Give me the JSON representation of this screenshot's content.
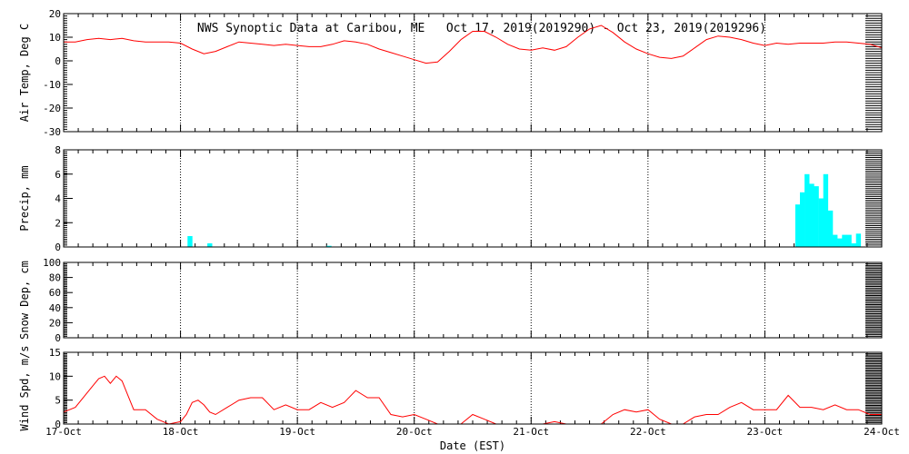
{
  "title": "NWS Synoptic Data at Caribou, ME   Oct 17, 2019(2019290) - Oct 23, 2019(2019296)",
  "x_axis_label": "Date (EST)",
  "x_ticks": [
    "17-Oct",
    "18-Oct",
    "19-Oct",
    "20-Oct",
    "21-Oct",
    "22-Oct",
    "23-Oct",
    "24-Oct"
  ],
  "colors": {
    "line": "#ff0000",
    "bars": "#00ffff",
    "axes": "#000000",
    "background": "#ffffff"
  },
  "chart_data": [
    {
      "type": "line",
      "ylabel": "Air Temp, Deg C",
      "ylim": [
        -30,
        20
      ],
      "yticks": [
        20,
        10,
        0,
        -10,
        -20,
        -30
      ],
      "x_unit": "days since 17-Oct 00:00 EST",
      "x": [
        0,
        0.1,
        0.2,
        0.3,
        0.4,
        0.5,
        0.6,
        0.7,
        0.8,
        0.9,
        1.0,
        1.1,
        1.2,
        1.3,
        1.4,
        1.5,
        1.6,
        1.7,
        1.8,
        1.9,
        2.0,
        2.1,
        2.2,
        2.3,
        2.4,
        2.5,
        2.6,
        2.7,
        2.8,
        2.9,
        3.0,
        3.1,
        3.2,
        3.3,
        3.4,
        3.5,
        3.6,
        3.7,
        3.8,
        3.9,
        4.0,
        4.1,
        4.2,
        4.3,
        4.4,
        4.5,
        4.6,
        4.7,
        4.8,
        4.9,
        5.0,
        5.1,
        5.2,
        5.3,
        5.4,
        5.5,
        5.6,
        5.7,
        5.8,
        5.9,
        6.0,
        6.1,
        6.2,
        6.3,
        6.4,
        6.5,
        6.6,
        6.7,
        6.8,
        6.9,
        7.0
      ],
      "y": [
        8,
        8,
        9,
        9.5,
        9,
        9.5,
        8.5,
        8,
        8,
        8,
        7.5,
        5,
        3,
        4,
        6,
        8,
        7.5,
        7,
        6.5,
        7,
        6.5,
        6,
        6,
        7,
        8.5,
        8,
        7,
        5,
        3.5,
        2,
        0.5,
        -1,
        -0.5,
        4,
        9,
        12.5,
        12.5,
        10,
        7,
        5,
        4.5,
        5.5,
        4.5,
        6,
        10,
        13.5,
        15,
        12,
        8,
        5,
        3,
        1.5,
        1,
        2,
        5.5,
        9,
        10.5,
        10,
        9,
        7.5,
        6.5,
        7.5,
        7,
        7.5,
        7.5,
        7.5,
        8,
        8,
        7.5,
        7,
        5.5
      ]
    },
    {
      "type": "bar",
      "ylabel": "Precip, mm",
      "ylim": [
        0,
        8
      ],
      "yticks": [
        8,
        6,
        4,
        2,
        0
      ],
      "x_unit": "days since 17-Oct 00:00 EST",
      "bar_width_days": 0.042,
      "x": [
        1.06,
        1.23,
        2.25,
        6.26,
        6.3,
        6.34,
        6.38,
        6.42,
        6.46,
        6.5,
        6.54,
        6.58,
        6.62,
        6.66,
        6.7,
        6.74,
        6.78
      ],
      "values": [
        0.9,
        0.3,
        0.1,
        3.5,
        4.5,
        6.0,
        5.2,
        5.0,
        4.0,
        6.0,
        3.0,
        1.0,
        0.7,
        1.0,
        1.0,
        0.3,
        1.1
      ]
    },
    {
      "type": "line",
      "ylabel": "Snow Dep, cm",
      "ylim": [
        0,
        100
      ],
      "yticks": [
        100,
        80,
        60,
        40,
        20,
        0
      ],
      "x": [],
      "y": []
    },
    {
      "type": "line",
      "ylabel": "Wind Spd, m/s",
      "ylim": [
        0,
        15
      ],
      "yticks": [
        15,
        10,
        5,
        0
      ],
      "x_unit": "days since 17-Oct 00:00 EST",
      "x": [
        0,
        0.1,
        0.2,
        0.25,
        0.3,
        0.35,
        0.4,
        0.45,
        0.5,
        0.55,
        0.6,
        0.7,
        0.8,
        0.9,
        1.0,
        1.05,
        1.1,
        1.15,
        1.2,
        1.25,
        1.3,
        1.4,
        1.5,
        1.6,
        1.7,
        1.8,
        1.9,
        2.0,
        2.1,
        2.2,
        2.3,
        2.4,
        2.5,
        2.6,
        2.7,
        2.8,
        2.9,
        3.0,
        3.1,
        3.2,
        3.3,
        3.4,
        3.5,
        3.6,
        3.7,
        3.8,
        3.9,
        4.0,
        4.1,
        4.2,
        4.3,
        4.4,
        4.5,
        4.6,
        4.7,
        4.8,
        4.9,
        5.0,
        5.1,
        5.2,
        5.3,
        5.4,
        5.5,
        5.6,
        5.7,
        5.8,
        5.9,
        6.0,
        6.1,
        6.2,
        6.3,
        6.4,
        6.5,
        6.6,
        6.7,
        6.8,
        6.9,
        7.0
      ],
      "y": [
        2.5,
        3.5,
        6.5,
        8,
        9.5,
        10,
        8.5,
        10,
        9,
        6,
        3,
        3,
        1,
        0,
        0.5,
        2,
        4.5,
        5,
        4,
        2.5,
        2,
        3.5,
        5,
        5.5,
        5.5,
        3,
        4,
        3,
        3,
        4.5,
        3.5,
        4.5,
        7,
        5.5,
        5.5,
        2,
        1.5,
        2,
        1,
        0,
        0,
        0,
        2,
        1,
        0,
        0,
        0,
        0,
        0,
        0.5,
        0,
        0,
        0,
        0,
        2,
        3,
        2.5,
        3,
        1,
        0,
        0,
        1.5,
        2,
        2,
        3.5,
        4.5,
        3,
        3,
        3,
        6,
        3.5,
        3.5,
        3,
        4,
        3,
        3,
        2,
        2
      ]
    }
  ]
}
